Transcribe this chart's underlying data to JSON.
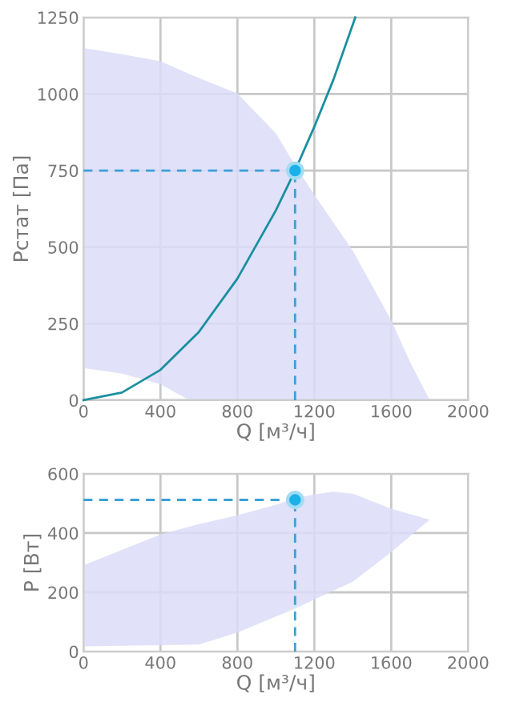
{
  "chart_data": [
    {
      "type": "area",
      "xlabel": "Q [м³/ч]",
      "ylabel": "Pстат [Па]",
      "xlim": [
        0,
        2000
      ],
      "ylim": [
        0,
        1250
      ],
      "xticks": [
        0,
        400,
        800,
        1200,
        1600,
        2000
      ],
      "yticks": [
        0,
        250,
        500,
        750,
        1000,
        1250
      ],
      "grid": true,
      "legend": false,
      "series": [
        {
          "color": "#dcdcf8",
          "x": [
            0,
            200,
            400,
            550,
            800,
            1000,
            1100,
            1200,
            1400,
            1600,
            1700,
            1800,
            550,
            400,
            200,
            0
          ],
          "values": [
            1150,
            1130,
            1107,
            1065,
            1002,
            872,
            767,
            671,
            488,
            261,
            122,
            0,
            0,
            52,
            87,
            105
          ]
        },
        {
          "type": "line",
          "color": "#1a8fa0",
          "line_style": "solid",
          "x": [
            0,
            200,
            400,
            600,
            800,
            1000,
            1100,
            1200,
            1300,
            1413
          ],
          "values": [
            0,
            25,
            99,
            223,
            397,
            620,
            750,
            893,
            1048,
            1250
          ]
        },
        {
          "type": "line",
          "color": "#3aa0d8",
          "line_style": "dashed",
          "x": [
            0,
            1100
          ],
          "values": [
            750,
            750
          ]
        },
        {
          "type": "line",
          "color": "#3aa0d8",
          "line_style": "dashed",
          "x": [
            1100,
            1100
          ],
          "values": [
            0,
            750
          ]
        },
        {
          "type": "scatter",
          "color": "#1ab0e8",
          "marker": "circle",
          "x": [
            1100
          ],
          "values": [
            750
          ]
        }
      ]
    },
    {
      "type": "area",
      "xlabel": "Q [м³/ч]",
      "ylabel": "P [Вт]",
      "xlim": [
        0,
        2000
      ],
      "ylim": [
        0,
        600
      ],
      "xticks": [
        0,
        400,
        800,
        1200,
        1600,
        2000
      ],
      "yticks": [
        0,
        200,
        400,
        600
      ],
      "grid": true,
      "legend": false,
      "series": [
        {
          "color": "#dcdcf8",
          "x": [
            0,
            400,
            600,
            800,
            1000,
            1100,
            1200,
            1300,
            1400,
            1600,
            1800,
            1600,
            1400,
            1200,
            1100,
            1000,
            800,
            600,
            400,
            0
          ],
          "values": [
            291,
            395,
            430,
            460,
            495,
            518,
            530,
            540,
            533,
            482,
            445,
            336,
            236,
            176,
            145,
            118,
            64,
            24,
            22,
            18
          ]
        },
        {
          "type": "line",
          "color": "#3aa0d8",
          "line_style": "dashed",
          "x": [
            0,
            1100
          ],
          "values": [
            512,
            512
          ]
        },
        {
          "type": "line",
          "color": "#3aa0d8",
          "line_style": "dashed",
          "x": [
            1100,
            1100
          ],
          "values": [
            0,
            512
          ]
        },
        {
          "type": "scatter",
          "color": "#1ab0e8",
          "marker": "circle",
          "x": [
            1100
          ],
          "values": [
            512
          ]
        }
      ]
    }
  ]
}
